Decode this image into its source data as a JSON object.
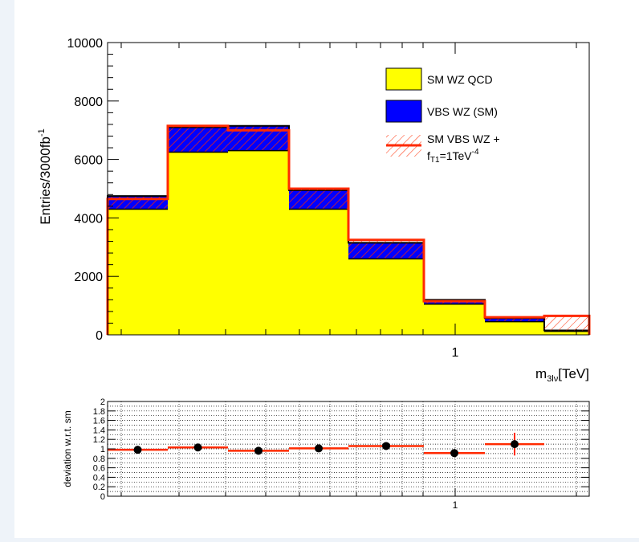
{
  "chart_data": [
    {
      "type": "bar",
      "subtype": "stacked-histogram",
      "ylabel": "Entries/3000fb",
      "ylabel_sup": "-1",
      "xlabel_main": "m",
      "xlabel_sub": "3lν",
      "xlabel_unit": "[TeV]",
      "x_scale": "log",
      "x_tick_label": "1",
      "ylim": [
        0,
        10000
      ],
      "y_ticks": [
        0,
        2000,
        4000,
        6000,
        8000,
        10000
      ],
      "y_tick_labels": [
        "0",
        "2000",
        "4000",
        "6000",
        "8000",
        "10000"
      ],
      "bin_edges": [
        0.3,
        0.4,
        0.5,
        0.6,
        0.7,
        0.8,
        0.9,
        1.0,
        1.2
      ],
      "bin_edges_note": "",
      "series": [
        {
          "name": "SM WZ QCD",
          "color": "#ffff00",
          "values": [
            4300,
            6250,
            6300,
            4300,
            2600,
            1050,
            450,
            120
          ]
        },
        {
          "name": "VBS WZ (SM)",
          "color": "#0000ff",
          "hatch": true,
          "values": [
            450,
            850,
            850,
            650,
            550,
            150,
            120,
            30
          ]
        }
      ],
      "total_sm_line": [
        4750,
        7100,
        7150,
        4950,
        3150,
        1200,
        570,
        150
      ],
      "signal": {
        "name_line1": "SM VBS WZ +",
        "name_f": "f",
        "name_f_sub": "T1",
        "name_rest": "=1TeV",
        "name_sup": "-4",
        "color": "#ff2a00",
        "values": [
          4650,
          7150,
          7000,
          5000,
          3250,
          1150,
          600,
          650
        ]
      },
      "legend_position": "top-right",
      "grid": false
    },
    {
      "type": "scatter",
      "subtype": "ratio-with-errors",
      "ylabel": "deviation w.r.t. sm",
      "x_scale": "log",
      "x_tick_label": "1",
      "ylim": [
        0,
        2
      ],
      "y_tick_labels": [
        "0",
        "0.2",
        "0.4",
        "0.6",
        "0.8",
        "1",
        "1.2",
        "1.4",
        "1.6",
        "1.8",
        "2"
      ],
      "grid": true,
      "points": [
        {
          "x_bin": 0,
          "y": 0.98,
          "err": 0.03
        },
        {
          "x_bin": 1,
          "y": 1.03,
          "err": 0.03
        },
        {
          "x_bin": 2,
          "y": 0.96,
          "err": 0.03
        },
        {
          "x_bin": 3,
          "y": 1.01,
          "err": 0.03
        },
        {
          "x_bin": 4,
          "y": 1.06,
          "err": 0.04
        },
        {
          "x_bin": 5,
          "y": 0.91,
          "err": 0.06
        },
        {
          "x_bin": 6,
          "y": 1.1,
          "err": 0.24
        }
      ]
    }
  ]
}
